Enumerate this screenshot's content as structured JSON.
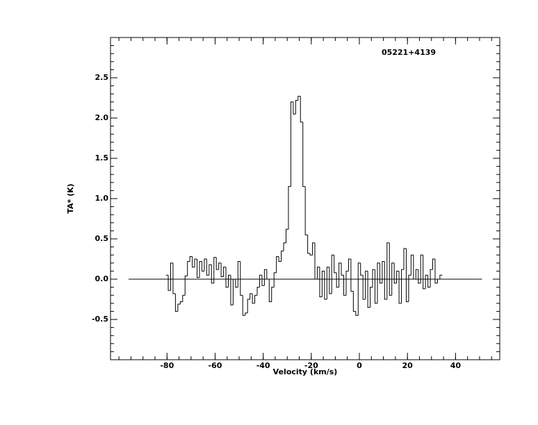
{
  "chart_data": {
    "type": "step",
    "title": "05221+4139",
    "x_label": "Velocity (km/s)",
    "y_label": "TA* (K)",
    "x": [
      -80,
      -79,
      -78,
      -77,
      -76,
      -75,
      -74,
      -73,
      -72,
      -71,
      -70,
      -69,
      -68,
      -67,
      -66,
      -65,
      -64,
      -63,
      -62,
      -61,
      -60,
      -59,
      -58,
      -57,
      -56,
      -55,
      -54,
      -53,
      -52,
      -51,
      -50,
      -49,
      -48,
      -47,
      -46,
      -45,
      -44,
      -43,
      -42,
      -41,
      -40,
      -39,
      -38,
      -37,
      -36,
      -35,
      -34,
      -33,
      -32,
      -31,
      -30,
      -29,
      -28,
      -27,
      -26,
      -25,
      -24,
      -23,
      -22,
      -21,
      -20,
      -19,
      -18,
      -17,
      -16,
      -15,
      -14,
      -13,
      -12,
      -11,
      -10,
      -9,
      -8,
      -7,
      -6,
      -5,
      -4,
      -3,
      -2,
      -1,
      0,
      1,
      2,
      3,
      4,
      5,
      6,
      7,
      8,
      9,
      10,
      11,
      12,
      13,
      14,
      15,
      16,
      17,
      18,
      19,
      20,
      21,
      22,
      23,
      24,
      25,
      26,
      27,
      28,
      29,
      30,
      31,
      32,
      33,
      34
    ],
    "values": [
      0.05,
      -0.14,
      0.2,
      -0.18,
      -0.4,
      -0.31,
      -0.28,
      -0.2,
      0.04,
      0.22,
      0.28,
      0.15,
      0.25,
      0.02,
      0.22,
      0.1,
      0.25,
      0.05,
      0.18,
      -0.05,
      0.27,
      0.12,
      0.2,
      0.03,
      0.15,
      -0.1,
      0.05,
      -0.32,
      0.0,
      -0.1,
      0.22,
      -0.2,
      -0.45,
      -0.42,
      -0.25,
      -0.18,
      -0.3,
      -0.2,
      -0.1,
      0.05,
      -0.08,
      0.12,
      0.0,
      -0.28,
      -0.1,
      0.08,
      0.28,
      0.22,
      0.35,
      0.45,
      0.62,
      1.15,
      2.2,
      2.05,
      2.22,
      2.27,
      1.95,
      1.15,
      0.55,
      0.32,
      0.3,
      0.45,
      0.0,
      0.15,
      -0.22,
      0.1,
      -0.25,
      0.15,
      -0.18,
      0.3,
      0.08,
      -0.1,
      0.2,
      0.05,
      -0.2,
      0.1,
      0.25,
      -0.15,
      -0.4,
      -0.45,
      0.2,
      0.05,
      -0.25,
      0.1,
      -0.35,
      -0.1,
      0.12,
      -0.3,
      0.2,
      -0.05,
      0.22,
      -0.25,
      0.45,
      -0.2,
      0.2,
      -0.05,
      0.1,
      -0.3,
      0.12,
      0.38,
      -0.28,
      0.05,
      0.3,
      0.0,
      0.12,
      -0.05,
      0.3,
      -0.12,
      0.05,
      -0.1,
      0.12,
      0.25,
      -0.05,
      0.0,
      0.05
    ],
    "color": "#333333",
    "reference_line": {
      "y": 0,
      "x": [
        -96,
        51
      ]
    },
    "xlim": [
      -103.5,
      58.4
    ],
    "xticks": [
      -80,
      -60,
      -40,
      -20,
      0,
      20,
      40
    ],
    "xminor": 4,
    "ylim": [
      -1,
      3
    ],
    "yticks": [
      {
        "value": -0.5,
        "label": "-0.5"
      },
      {
        "value": 0,
        "label": "0.0"
      },
      {
        "value": 0.5,
        "label": "0.5"
      },
      {
        "value": 1,
        "label": "1.0"
      },
      {
        "value": 1.5,
        "label": "1.5"
      },
      {
        "value": 2,
        "label": "2.0"
      },
      {
        "value": 2.5,
        "label": "2.5"
      }
    ],
    "yminor": 5
  }
}
